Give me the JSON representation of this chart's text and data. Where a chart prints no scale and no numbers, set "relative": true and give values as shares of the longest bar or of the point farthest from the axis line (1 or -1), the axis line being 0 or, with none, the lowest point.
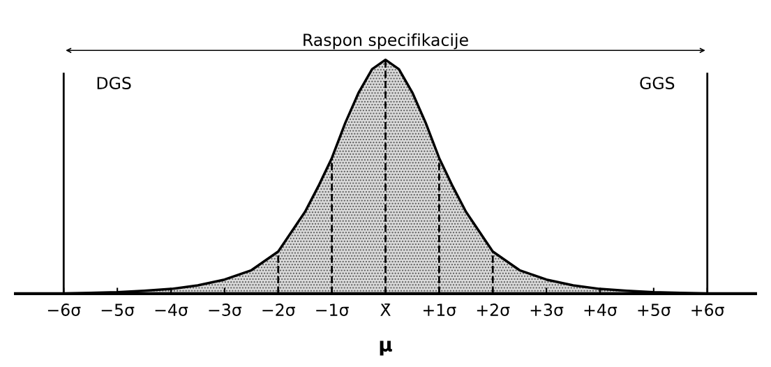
{
  "chart_data": {
    "type": "area",
    "relative": true,
    "x": [
      -6.5,
      -6,
      -5.5,
      -5,
      -4.5,
      -4,
      -3.5,
      -3,
      -2.5,
      -2,
      -1.5,
      -1.25,
      -1,
      -0.75,
      -0.5,
      -0.25,
      0,
      0.25,
      0.5,
      0.75,
      1,
      1.25,
      1.5,
      2,
      2.5,
      3,
      3.5,
      4,
      4.5,
      5,
      5.5,
      6,
      6.5
    ],
    "series": [
      {
        "color": "#d9d9d9",
        "values": [
          0,
          0,
          0.003,
          0.006,
          0.012,
          0.02,
          0.035,
          0.06,
          0.1,
          0.18,
          0.35,
          0.46,
          0.58,
          0.73,
          0.86,
          0.96,
          1,
          0.96,
          0.86,
          0.73,
          0.58,
          0.46,
          0.35,
          0.18,
          0.1,
          0.06,
          0.035,
          0.02,
          0.012,
          0.006,
          0.003,
          0,
          0
        ]
      }
    ],
    "xlim": [
      -6.9,
      6.9
    ],
    "xticks": [
      {
        "value": -6,
        "label": "−6σ"
      },
      {
        "value": -5,
        "label": "−5σ"
      },
      {
        "value": -4,
        "label": "−4σ"
      },
      {
        "value": -3,
        "label": "−3σ"
      },
      {
        "value": -2,
        "label": "−2σ"
      },
      {
        "value": -1,
        "label": "−1σ"
      },
      {
        "value": 0,
        "label": "X̄"
      },
      {
        "value": 1,
        "label": "+1σ"
      },
      {
        "value": 2,
        "label": "+2σ"
      },
      {
        "value": 3,
        "label": "+3σ"
      },
      {
        "value": 4,
        "label": "+4σ"
      },
      {
        "value": 5,
        "label": "+5σ"
      },
      {
        "value": 6,
        "label": "+6σ"
      }
    ],
    "xlabel": "μ",
    "annotations": [
      "Raspon specifikacije"
    ],
    "ref_lines": [
      {
        "axis": "x",
        "value": -6,
        "label": "DGS",
        "line_style": "solid"
      },
      {
        "axis": "x",
        "value": 6,
        "label": "GGS",
        "line_style": "solid"
      },
      {
        "axis": "x",
        "value": -2,
        "line_style": "dashed"
      },
      {
        "axis": "x",
        "value": -1,
        "line_style": "dashed"
      },
      {
        "axis": "x",
        "value": 0,
        "line_style": "dashed"
      },
      {
        "axis": "x",
        "value": 1,
        "line_style": "dashed"
      },
      {
        "axis": "x",
        "value": 2,
        "line_style": "dashed"
      }
    ],
    "grid": false
  }
}
